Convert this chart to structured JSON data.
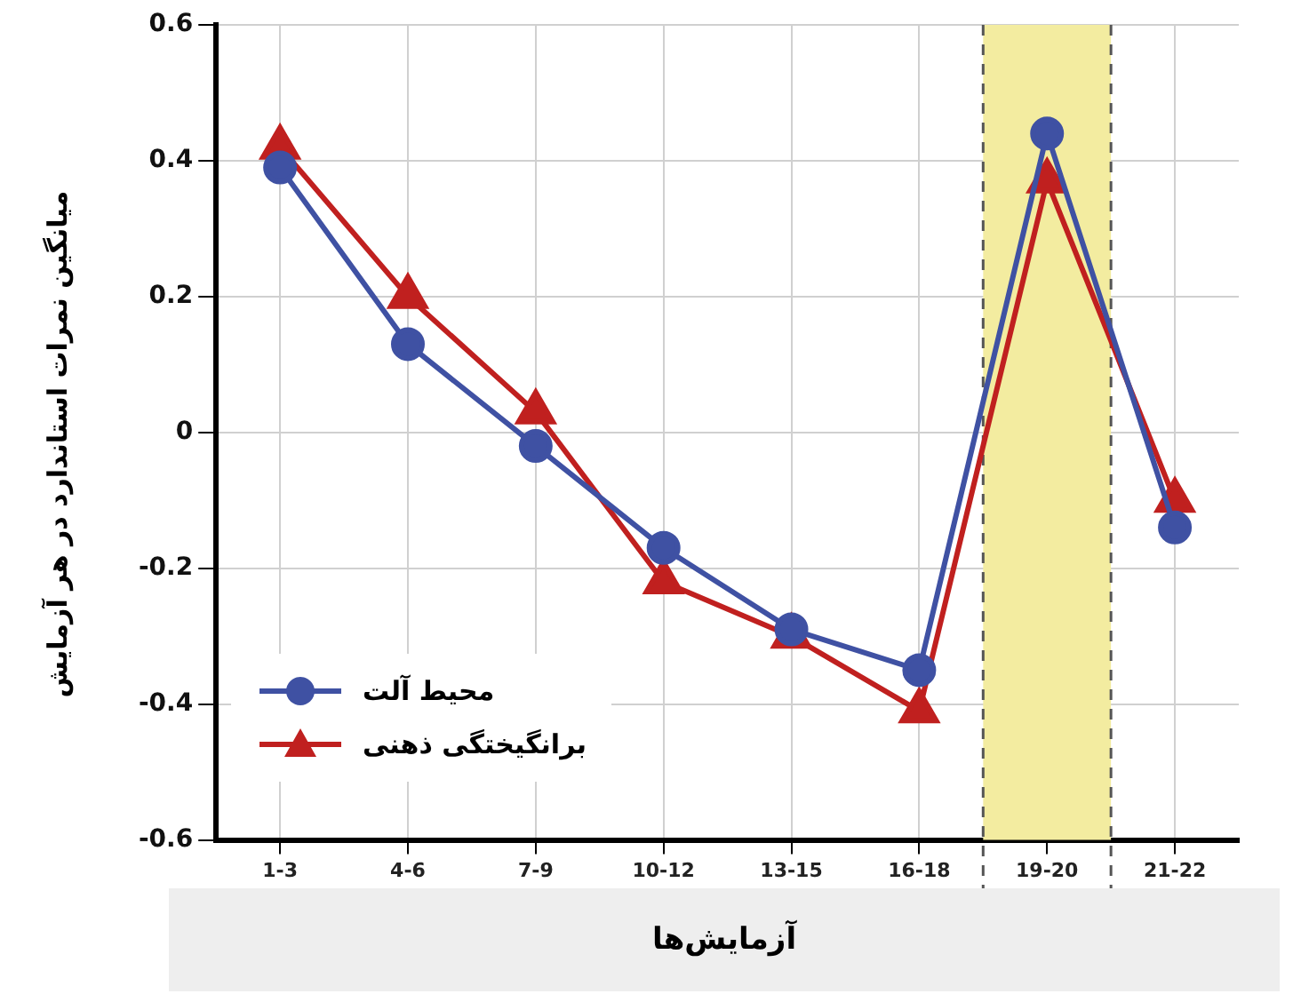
{
  "chart_data": {
    "type": "line",
    "xlabel": "آزمایش‌ها",
    "ylabel": "میانگین نمرات استاندارد در هر آزمایش",
    "categories": [
      "1-3",
      "4-6",
      "7-9",
      "10-12",
      "13-15",
      "16-18",
      "19-20",
      "21-22"
    ],
    "series": [
      {
        "name": "محیط آلت",
        "color": "#3f51a3",
        "marker": "circle",
        "values": [
          0.39,
          0.13,
          -0.02,
          -0.17,
          -0.29,
          -0.35,
          0.44,
          -0.14
        ]
      },
      {
        "name": "برانگیختگی ذهنی",
        "color": "#c0201f",
        "marker": "triangle",
        "values": [
          0.42,
          0.2,
          0.03,
          -0.22,
          -0.3,
          -0.41,
          0.37,
          -0.1
        ]
      }
    ],
    "ylim": [
      -0.6,
      0.6
    ],
    "yticks": [
      -0.6,
      -0.4,
      -0.2,
      0,
      0.2,
      0.4,
      0.6
    ],
    "bands": [
      {
        "axis": "x",
        "from": "19-20",
        "to": "19-20",
        "color": "#f3eca0"
      }
    ],
    "grid": true,
    "legend": "bottom left"
  }
}
